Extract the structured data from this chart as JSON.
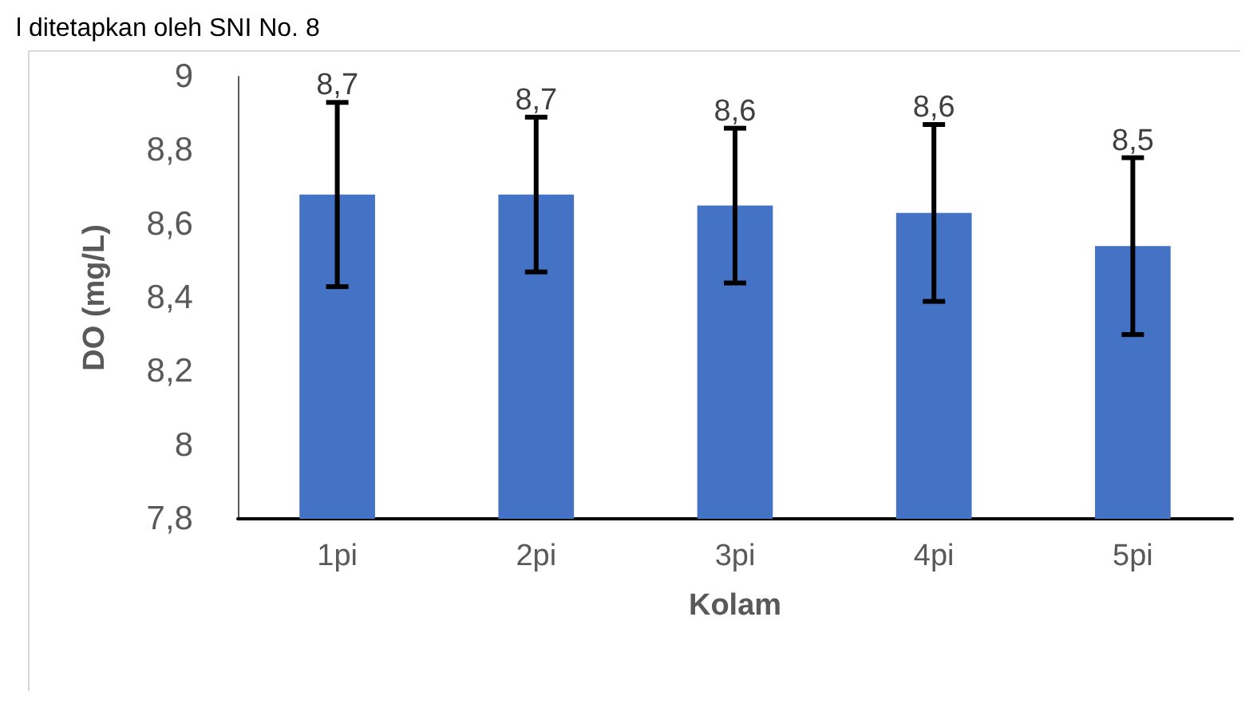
{
  "chart_data": {
    "type": "bar",
    "xlabel": "Kolam",
    "ylabel": "DO (mg/L)",
    "annotations": [
      "l ditetapkan oleh SNI No. 8"
    ],
    "categories": [
      "1pi",
      "2pi",
      "3pi",
      "4pi",
      "5pi"
    ],
    "values": [
      8.68,
      8.68,
      8.65,
      8.63,
      8.54
    ],
    "errors": [
      0.25,
      0.21,
      0.21,
      0.24,
      0.24
    ],
    "value_labels": [
      "8,7",
      "8,7",
      "8,6",
      "8,6",
      "8,5"
    ],
    "color": "#4472c4",
    "ylim": [
      7.8,
      9
    ],
    "yticks": [
      {
        "value": 7.8,
        "label": "7,8"
      },
      {
        "value": 8,
        "label": "8"
      },
      {
        "value": 8.2,
        "label": "8,2"
      },
      {
        "value": 8.4,
        "label": "8,4"
      },
      {
        "value": 8.6,
        "label": "8,6"
      },
      {
        "value": 8.8,
        "label": "8,8"
      },
      {
        "value": 9,
        "label": "9"
      }
    ],
    "grid": false
  }
}
